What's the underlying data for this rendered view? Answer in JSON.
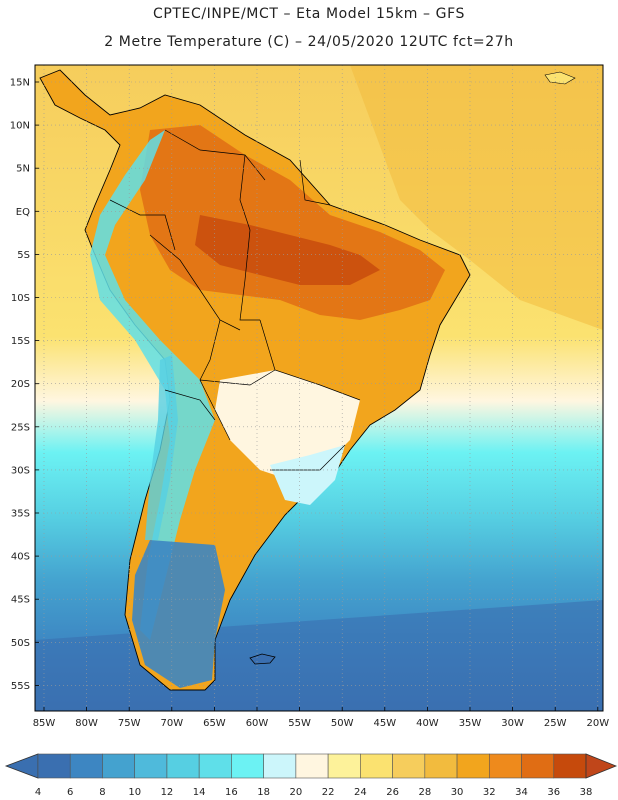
{
  "header": {
    "title_line1": "CPTEC/INPE/MCT –  Eta Model 15km – GFS",
    "title_line2": "2 Metre Temperature (C) – 24/05/2020 12UTC fct=27h"
  },
  "map": {
    "lat_labels": [
      "15N",
      "10N",
      "5N",
      "EQ",
      "5S",
      "10S",
      "15S",
      "20S",
      "25S",
      "30S",
      "35S",
      "40S",
      "45S",
      "50S",
      "55S"
    ],
    "lon_labels": [
      "85W",
      "80W",
      "75W",
      "70W",
      "65W",
      "60W",
      "55W",
      "50W",
      "45W",
      "40W",
      "35W",
      "30W",
      "25W",
      "20W"
    ],
    "variable": "2 Metre Temperature",
    "units": "C"
  },
  "colorbar": {
    "labels": [
      "4",
      "6",
      "8",
      "10",
      "12",
      "14",
      "16",
      "18",
      "20",
      "22",
      "24",
      "26",
      "28",
      "30",
      "32",
      "34",
      "36",
      "38"
    ],
    "colors": [
      "#3a6fb0",
      "#3d86c2",
      "#44a2cf",
      "#4fbadb",
      "#56cfe2",
      "#5fdfe9",
      "#6cf2f3",
      "#ccf6fb",
      "#fff6e0",
      "#fdf29a",
      "#fbe270",
      "#f6cd5c",
      "#f2bb3e",
      "#f2a51d",
      "#ee8a1c",
      "#e06d14",
      "#c64a0c"
    ],
    "low_color": "#3a6fb0",
    "high_color": "#c0461a"
  }
}
